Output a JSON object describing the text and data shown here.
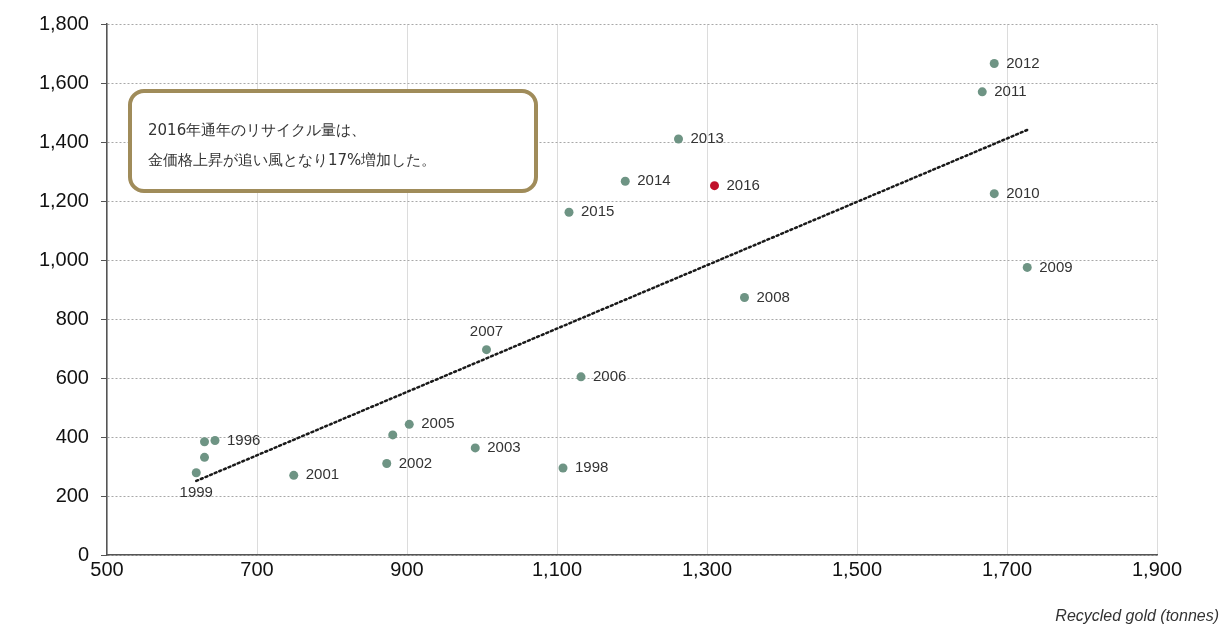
{
  "chart_data": {
    "type": "scatter",
    "xlabel": "Recycled gold (tonnes)",
    "xlim": [
      500,
      1900
    ],
    "xticks": [
      500,
      700,
      900,
      {
        "value": 1100,
        "label": "1,100"
      },
      {
        "value": 1300,
        "label": "1,300"
      },
      {
        "value": 1500,
        "label": "1,500"
      },
      {
        "value": 1700,
        "label": "1,700"
      },
      {
        "value": 1900,
        "label": "1,900"
      }
    ],
    "ylim": [
      0,
      1800
    ],
    "yticks": [
      0,
      200,
      400,
      600,
      800,
      {
        "value": 1000,
        "label": "1,000"
      },
      {
        "value": 1200,
        "label": "1,200"
      },
      {
        "value": 1400,
        "label": "1,400"
      },
      {
        "value": 1600,
        "label": "1,600"
      },
      {
        "value": 1800,
        "label": "1,800"
      }
    ],
    "grid": true,
    "legend": false,
    "marker": "circle",
    "series": [
      {
        "color": "#6e9484",
        "x": [
          644,
          630,
          630,
          619,
          749,
          873,
          881,
          903,
          991,
          1108,
          1006,
          1132,
          1683,
          1667,
          1262,
          1191,
          1116,
          1683,
          1727,
          1350
        ],
        "values": [
          388,
          384,
          331,
          279,
          270,
          310,
          407,
          443,
          363,
          295,
          696,
          604,
          1666,
          1570,
          1410,
          1267,
          1162,
          1225,
          975,
          873
        ]
      },
      {
        "color": "#c0102a",
        "x": [
          1310
        ],
        "values": [
          1252
        ]
      },
      {
        "type": "line",
        "color": "#1a1a1a",
        "marker": "none",
        "line_style": "dotted",
        "x": [
          619,
          1729
        ],
        "values": [
          251,
          1443
        ]
      }
    ],
    "annotations": [
      "2016年通年のリサイクル量は、",
      "金価格上昇が追い風となり17%増加した。",
      {
        "text": "1996",
        "x": 644,
        "y": 388
      },
      {
        "text": "1999",
        "x": 619,
        "y": 279
      },
      {
        "text": "2001",
        "x": 749,
        "y": 270
      },
      {
        "text": "2002",
        "x": 873,
        "y": 310
      },
      {
        "text": "2005",
        "x": 903,
        "y": 443
      },
      {
        "text": "2003",
        "x": 991,
        "y": 363
      },
      {
        "text": "1998",
        "x": 1108,
        "y": 295
      },
      {
        "text": "2007",
        "x": 1006,
        "y": 696
      },
      {
        "text": "2006",
        "x": 1132,
        "y": 604
      },
      {
        "text": "2012",
        "x": 1683,
        "y": 1666
      },
      {
        "text": "2011",
        "x": 1667,
        "y": 1570
      },
      {
        "text": "2013",
        "x": 1262,
        "y": 1410
      },
      {
        "text": "2014",
        "x": 1191,
        "y": 1267
      },
      {
        "text": "2016",
        "x": 1310,
        "y": 1252
      },
      {
        "text": "2015",
        "x": 1116,
        "y": 1162
      },
      {
        "text": "2010",
        "x": 1683,
        "y": 1225
      },
      {
        "text": "2009",
        "x": 1727,
        "y": 975
      },
      {
        "text": "2008",
        "x": 1350,
        "y": 873
      }
    ]
  }
}
